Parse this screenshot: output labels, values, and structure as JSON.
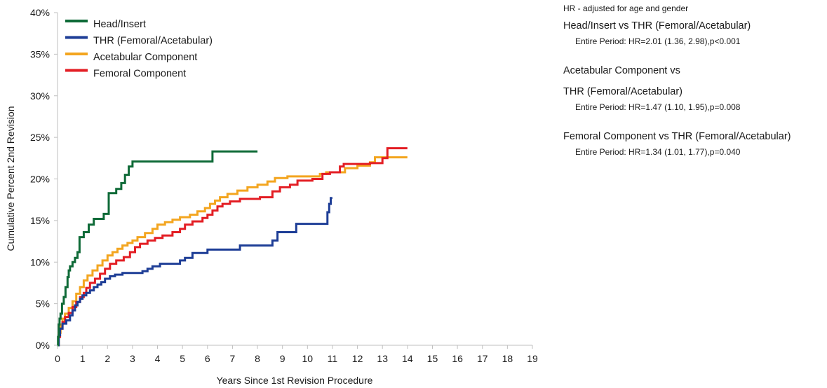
{
  "chart_data": {
    "type": "line",
    "step": true,
    "xlabel": "Years Since 1st Revision Procedure",
    "ylabel": "Cumulative Percent 2nd Revision",
    "xlim": [
      0,
      19
    ],
    "ylim": [
      0,
      40
    ],
    "x_ticks": [
      "0",
      "1",
      "2",
      "3",
      "4",
      "5",
      "6",
      "7",
      "8",
      "9",
      "10",
      "11",
      "12",
      "13",
      "14",
      "15",
      "16",
      "17",
      "18",
      "19"
    ],
    "y_ticks": [
      "0%",
      "5%",
      "10%",
      "15%",
      "20%",
      "25%",
      "30%",
      "35%",
      "40%"
    ],
    "grid": false,
    "legend_position": "top-left",
    "series": [
      {
        "name": "Head/Insert",
        "color": "#0e6a37",
        "points": [
          [
            0,
            0
          ],
          [
            0.02,
            1.0
          ],
          [
            0.05,
            2.5
          ],
          [
            0.08,
            3.2
          ],
          [
            0.12,
            3.8
          ],
          [
            0.18,
            5.0
          ],
          [
            0.25,
            5.8
          ],
          [
            0.32,
            7.0
          ],
          [
            0.4,
            8.2
          ],
          [
            0.45,
            9.0
          ],
          [
            0.5,
            9.5
          ],
          [
            0.6,
            10.0
          ],
          [
            0.7,
            10.5
          ],
          [
            0.8,
            11.2
          ],
          [
            0.88,
            13.0
          ],
          [
            1.05,
            13.6
          ],
          [
            1.25,
            14.5
          ],
          [
            1.45,
            15.2
          ],
          [
            1.85,
            15.8
          ],
          [
            2.05,
            18.3
          ],
          [
            2.35,
            18.8
          ],
          [
            2.55,
            19.5
          ],
          [
            2.7,
            20.5
          ],
          [
            2.85,
            21.5
          ],
          [
            3.0,
            22.1
          ],
          [
            6.2,
            23.3
          ],
          [
            8.0,
            23.3
          ]
        ]
      },
      {
        "name": "THR (Femoral/Acetabular)",
        "color": "#1d3d96",
        "points": [
          [
            0,
            0
          ],
          [
            0.05,
            1.2
          ],
          [
            0.1,
            2.0
          ],
          [
            0.2,
            2.6
          ],
          [
            0.35,
            3.0
          ],
          [
            0.5,
            3.6
          ],
          [
            0.6,
            4.2
          ],
          [
            0.7,
            4.8
          ],
          [
            0.8,
            5.2
          ],
          [
            0.9,
            5.6
          ],
          [
            1.0,
            6.0
          ],
          [
            1.15,
            6.3
          ],
          [
            1.3,
            6.6
          ],
          [
            1.45,
            7.0
          ],
          [
            1.6,
            7.3
          ],
          [
            1.75,
            7.6
          ],
          [
            1.9,
            8.0
          ],
          [
            2.1,
            8.3
          ],
          [
            2.3,
            8.5
          ],
          [
            2.6,
            8.7
          ],
          [
            3.4,
            8.9
          ],
          [
            3.6,
            9.2
          ],
          [
            3.8,
            9.5
          ],
          [
            4.1,
            9.8
          ],
          [
            4.9,
            10.2
          ],
          [
            5.1,
            10.5
          ],
          [
            5.4,
            11.1
          ],
          [
            6.0,
            11.5
          ],
          [
            7.3,
            12.0
          ],
          [
            8.6,
            12.6
          ],
          [
            8.8,
            13.6
          ],
          [
            9.55,
            14.6
          ],
          [
            10.8,
            16.0
          ],
          [
            10.87,
            17.0
          ],
          [
            10.93,
            17.7
          ],
          [
            11.0,
            17.7
          ]
        ]
      },
      {
        "name": "Acetabular Component",
        "color": "#f3a51f",
        "points": [
          [
            0,
            0
          ],
          [
            0.05,
            1.5
          ],
          [
            0.12,
            2.5
          ],
          [
            0.2,
            3.2
          ],
          [
            0.3,
            3.8
          ],
          [
            0.45,
            4.5
          ],
          [
            0.6,
            5.3
          ],
          [
            0.75,
            6.2
          ],
          [
            0.9,
            7.0
          ],
          [
            1.05,
            7.8
          ],
          [
            1.2,
            8.4
          ],
          [
            1.4,
            9.0
          ],
          [
            1.6,
            9.6
          ],
          [
            1.8,
            10.2
          ],
          [
            2.0,
            10.8
          ],
          [
            2.2,
            11.2
          ],
          [
            2.4,
            11.6
          ],
          [
            2.6,
            12.0
          ],
          [
            2.8,
            12.3
          ],
          [
            3.0,
            12.6
          ],
          [
            3.2,
            13.0
          ],
          [
            3.5,
            13.5
          ],
          [
            3.8,
            14.0
          ],
          [
            4.0,
            14.5
          ],
          [
            4.3,
            14.8
          ],
          [
            4.6,
            15.1
          ],
          [
            4.9,
            15.4
          ],
          [
            5.3,
            15.7
          ],
          [
            5.6,
            16.1
          ],
          [
            5.9,
            16.5
          ],
          [
            6.1,
            17.0
          ],
          [
            6.3,
            17.4
          ],
          [
            6.5,
            17.8
          ],
          [
            6.8,
            18.2
          ],
          [
            7.2,
            18.6
          ],
          [
            7.6,
            19.0
          ],
          [
            8.0,
            19.3
          ],
          [
            8.4,
            19.7
          ],
          [
            8.7,
            20.1
          ],
          [
            9.2,
            20.3
          ],
          [
            10.5,
            20.6
          ],
          [
            10.75,
            20.8
          ],
          [
            11.5,
            21.3
          ],
          [
            12.0,
            21.6
          ],
          [
            12.5,
            22.0
          ],
          [
            12.7,
            22.6
          ],
          [
            13.05,
            22.6
          ],
          [
            14.0,
            22.6
          ]
        ]
      },
      {
        "name": "Femoral Component",
        "color": "#e31e24",
        "points": [
          [
            0,
            0
          ],
          [
            0.03,
            1.0
          ],
          [
            0.1,
            2.0
          ],
          [
            0.2,
            2.8
          ],
          [
            0.3,
            3.4
          ],
          [
            0.45,
            3.9
          ],
          [
            0.6,
            4.6
          ],
          [
            0.75,
            5.2
          ],
          [
            0.9,
            5.8
          ],
          [
            1.05,
            6.3
          ],
          [
            1.15,
            6.9
          ],
          [
            1.3,
            7.5
          ],
          [
            1.5,
            8.0
          ],
          [
            1.7,
            8.6
          ],
          [
            1.9,
            9.2
          ],
          [
            2.1,
            9.8
          ],
          [
            2.35,
            10.2
          ],
          [
            2.65,
            10.6
          ],
          [
            2.9,
            11.2
          ],
          [
            3.1,
            11.8
          ],
          [
            3.3,
            12.2
          ],
          [
            3.6,
            12.6
          ],
          [
            3.9,
            12.9
          ],
          [
            4.2,
            13.2
          ],
          [
            4.6,
            13.6
          ],
          [
            4.9,
            14.0
          ],
          [
            5.1,
            14.5
          ],
          [
            5.4,
            14.9
          ],
          [
            5.8,
            15.3
          ],
          [
            6.0,
            15.7
          ],
          [
            6.2,
            16.2
          ],
          [
            6.4,
            16.7
          ],
          [
            6.6,
            17.0
          ],
          [
            6.9,
            17.3
          ],
          [
            7.3,
            17.6
          ],
          [
            8.1,
            17.8
          ],
          [
            8.6,
            18.5
          ],
          [
            8.9,
            19.0
          ],
          [
            9.3,
            19.3
          ],
          [
            9.6,
            19.8
          ],
          [
            10.2,
            20.0
          ],
          [
            10.6,
            20.6
          ],
          [
            10.9,
            20.8
          ],
          [
            11.3,
            21.5
          ],
          [
            11.45,
            21.8
          ],
          [
            12.5,
            21.9
          ],
          [
            13.0,
            22.5
          ],
          [
            13.2,
            23.7
          ],
          [
            14.0,
            23.7
          ]
        ]
      }
    ],
    "annotations": {
      "note": "HR - adjusted for age and gender",
      "comparisons": [
        {
          "title": "Head/Insert vs THR (Femoral/Acetabular)",
          "title_lines": [
            "Head/Insert vs THR (Femoral/Acetabular)"
          ],
          "detail": "Entire Period: HR=2.01 (1.36, 2.98),p<0.001"
        },
        {
          "title": "Acetabular Component vs THR (Femoral/Acetabular)",
          "title_lines": [
            "Acetabular Component vs",
            "THR (Femoral/Acetabular)"
          ],
          "detail": "Entire Period: HR=1.47 (1.10, 1.95),p=0.008"
        },
        {
          "title": "Femoral Component vs THR (Femoral/Acetabular)",
          "title_lines": [
            "Femoral Component vs THR (Femoral/Acetabular)"
          ],
          "detail": "Entire Period: HR=1.34 (1.01, 1.77),p=0.040"
        }
      ]
    }
  }
}
